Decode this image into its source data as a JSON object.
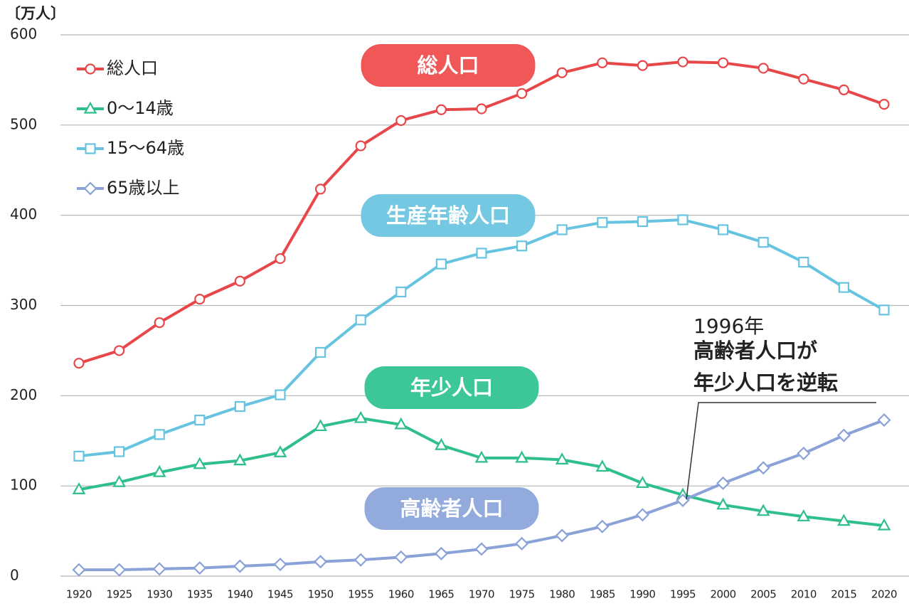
{
  "chart_data": {
    "type": "line",
    "y_unit_label": "〔万人〕",
    "x": [
      1920,
      1925,
      1930,
      1935,
      1940,
      1945,
      1950,
      1955,
      1960,
      1965,
      1970,
      1975,
      1980,
      1985,
      1990,
      1995,
      2000,
      2005,
      2010,
      2015,
      2020
    ],
    "xlim": [
      1920,
      2020
    ],
    "xticks": [
      1920,
      1925,
      1930,
      1935,
      1940,
      1945,
      1950,
      1955,
      1960,
      1965,
      1970,
      1975,
      1980,
      1985,
      1990,
      1995,
      2000,
      2005,
      2010,
      2015,
      2020
    ],
    "ylim": [
      0,
      600
    ],
    "yticks": [
      0,
      100,
      200,
      300,
      400,
      500,
      600
    ],
    "grid": true,
    "legend": "upper left",
    "series": [
      {
        "name": "総人口",
        "color": "#e8474a",
        "marker": "circle",
        "values": [
          236,
          250,
          281,
          307,
          327,
          352,
          429,
          477,
          505,
          517,
          518,
          535,
          558,
          569,
          566,
          570,
          569,
          563,
          551,
          539,
          523
        ]
      },
      {
        "name": "0〜14歳",
        "color": "#2fbf8a",
        "marker": "triangle",
        "values": [
          96,
          104,
          115,
          124,
          128,
          137,
          166,
          175,
          168,
          145,
          131,
          131,
          129,
          121,
          103,
          90,
          79,
          72,
          66,
          61,
          56
        ]
      },
      {
        "name": "15〜64歳",
        "color": "#66c4e0",
        "marker": "square",
        "values": [
          133,
          138,
          157,
          173,
          188,
          201,
          248,
          284,
          315,
          346,
          358,
          366,
          384,
          392,
          393,
          395,
          384,
          370,
          348,
          320,
          295
        ]
      },
      {
        "name": "65歳以上",
        "color": "#8aa2d8",
        "marker": "diamond",
        "values": [
          7,
          7,
          8,
          9,
          11,
          13,
          16,
          18,
          21,
          25,
          30,
          36,
          45,
          55,
          68,
          84,
          103,
          120,
          136,
          156,
          173
        ]
      }
    ],
    "labels": [
      {
        "text": "総人口",
        "color": "#f05757"
      },
      {
        "text": "生産年齢人口",
        "color": "#74c8e2"
      },
      {
        "text": "年少人口",
        "color": "#3cc69a"
      },
      {
        "text": "高齢者人口",
        "color": "#93aadd"
      }
    ],
    "callout": [
      "1996年",
      "高齢者人口が",
      "年少人口を逆転"
    ]
  }
}
